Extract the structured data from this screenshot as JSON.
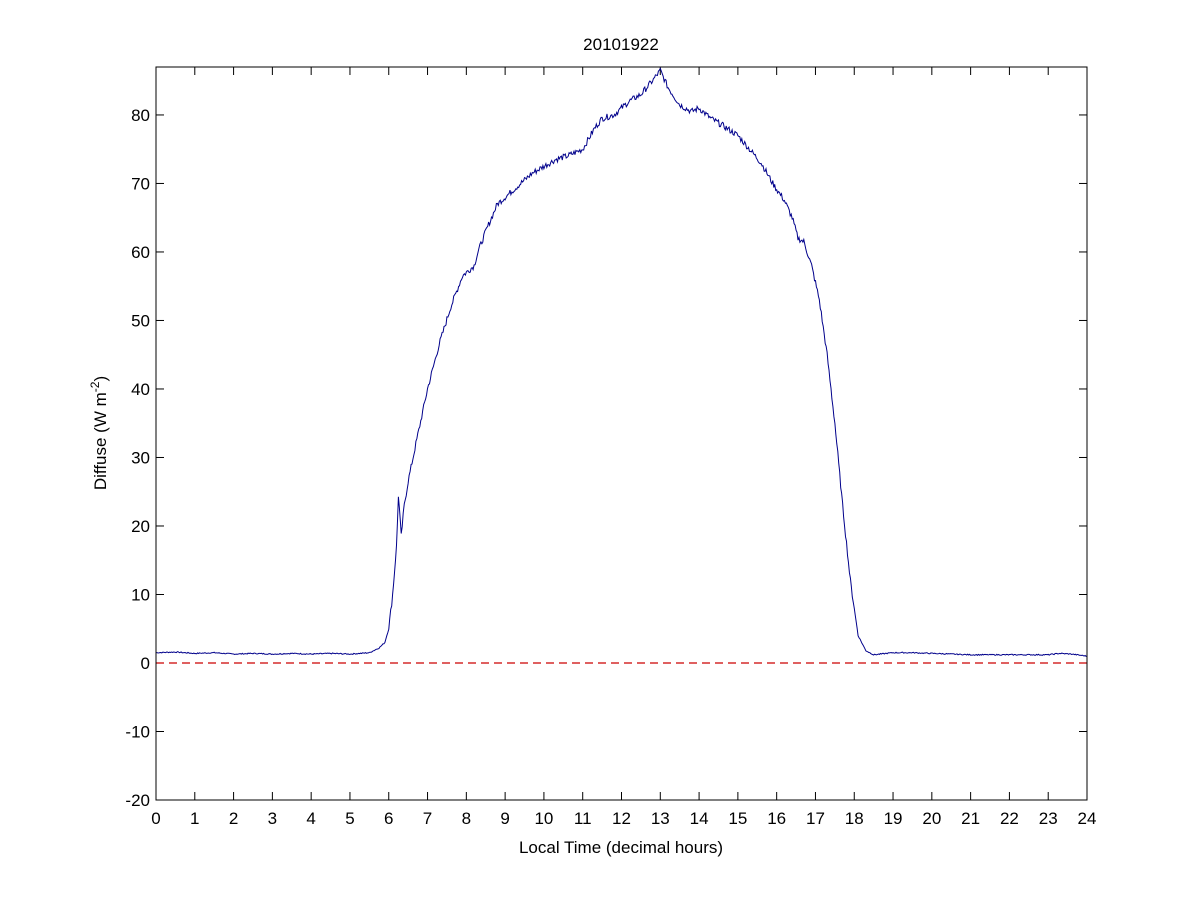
{
  "chart_data": {
    "type": "line",
    "title": "20101922",
    "xlabel": "Local Time (decimal hours)",
    "ylabel": "Diffuse (W m",
    "ylabel_sup": "-2",
    "ylabel_close": ")",
    "xlim": [
      0,
      24
    ],
    "ylim": [
      -20,
      87
    ],
    "xticks": [
      0,
      1,
      2,
      3,
      4,
      5,
      6,
      7,
      8,
      9,
      10,
      11,
      12,
      13,
      14,
      15,
      16,
      17,
      18,
      19,
      20,
      21,
      22,
      23,
      24
    ],
    "yticks": [
      -20,
      -10,
      0,
      10,
      20,
      30,
      40,
      50,
      60,
      70,
      80
    ],
    "grid": false,
    "reference_line": {
      "y": 0,
      "style": "dashed",
      "color": "#cc0000"
    },
    "series": [
      {
        "color": "#00008b",
        "points": [
          [
            0,
            1.5
          ],
          [
            0.5,
            1.6
          ],
          [
            1,
            1.4
          ],
          [
            1.5,
            1.5
          ],
          [
            2,
            1.3
          ],
          [
            2.5,
            1.4
          ],
          [
            3,
            1.3
          ],
          [
            3.5,
            1.4
          ],
          [
            4,
            1.3
          ],
          [
            4.5,
            1.4
          ],
          [
            5,
            1.3
          ],
          [
            5.5,
            1.5
          ],
          [
            5.75,
            2.2
          ],
          [
            5.9,
            3
          ],
          [
            6.0,
            5
          ],
          [
            6.1,
            10
          ],
          [
            6.2,
            17
          ],
          [
            6.25,
            24.5
          ],
          [
            6.32,
            18.5
          ],
          [
            6.4,
            23
          ],
          [
            6.5,
            26.5
          ],
          [
            6.7,
            32
          ],
          [
            7.0,
            40
          ],
          [
            7.3,
            46.5
          ],
          [
            7.6,
            52
          ],
          [
            7.9,
            56.5
          ],
          [
            8.2,
            58
          ],
          [
            8.3,
            60
          ],
          [
            8.5,
            63
          ],
          [
            8.8,
            67
          ],
          [
            9.0,
            68
          ],
          [
            9.3,
            69.5
          ],
          [
            9.7,
            71.5
          ],
          [
            10.0,
            72.5
          ],
          [
            10.3,
            73.5
          ],
          [
            10.6,
            74
          ],
          [
            11.0,
            75
          ],
          [
            11.3,
            78
          ],
          [
            11.5,
            79.5
          ],
          [
            11.8,
            80
          ],
          [
            12.0,
            81
          ],
          [
            12.2,
            82
          ],
          [
            12.5,
            83
          ],
          [
            12.8,
            85
          ],
          [
            13.0,
            86.5
          ],
          [
            13.2,
            84
          ],
          [
            13.5,
            81.5
          ],
          [
            13.8,
            80.5
          ],
          [
            14.0,
            81
          ],
          [
            14.3,
            79.5
          ],
          [
            14.6,
            78.5
          ],
          [
            15.0,
            77
          ],
          [
            15.3,
            75
          ],
          [
            15.6,
            73
          ],
          [
            15.9,
            70
          ],
          [
            16.2,
            67.5
          ],
          [
            16.4,
            65
          ],
          [
            16.55,
            62
          ],
          [
            16.7,
            61.5
          ],
          [
            16.9,
            58
          ],
          [
            17.1,
            53
          ],
          [
            17.3,
            45
          ],
          [
            17.5,
            35
          ],
          [
            17.7,
            23
          ],
          [
            17.9,
            12
          ],
          [
            18.1,
            4
          ],
          [
            18.3,
            1.8
          ],
          [
            18.5,
            1.2
          ],
          [
            19,
            1.5
          ],
          [
            19.5,
            1.5
          ],
          [
            20,
            1.4
          ],
          [
            20.5,
            1.3
          ],
          [
            21,
            1.2
          ],
          [
            21.5,
            1.2
          ],
          [
            22,
            1.2
          ],
          [
            22.5,
            1.2
          ],
          [
            23,
            1.2
          ],
          [
            23.3,
            1.4
          ],
          [
            23.6,
            1.3
          ],
          [
            24,
            1.0
          ]
        ]
      }
    ]
  }
}
